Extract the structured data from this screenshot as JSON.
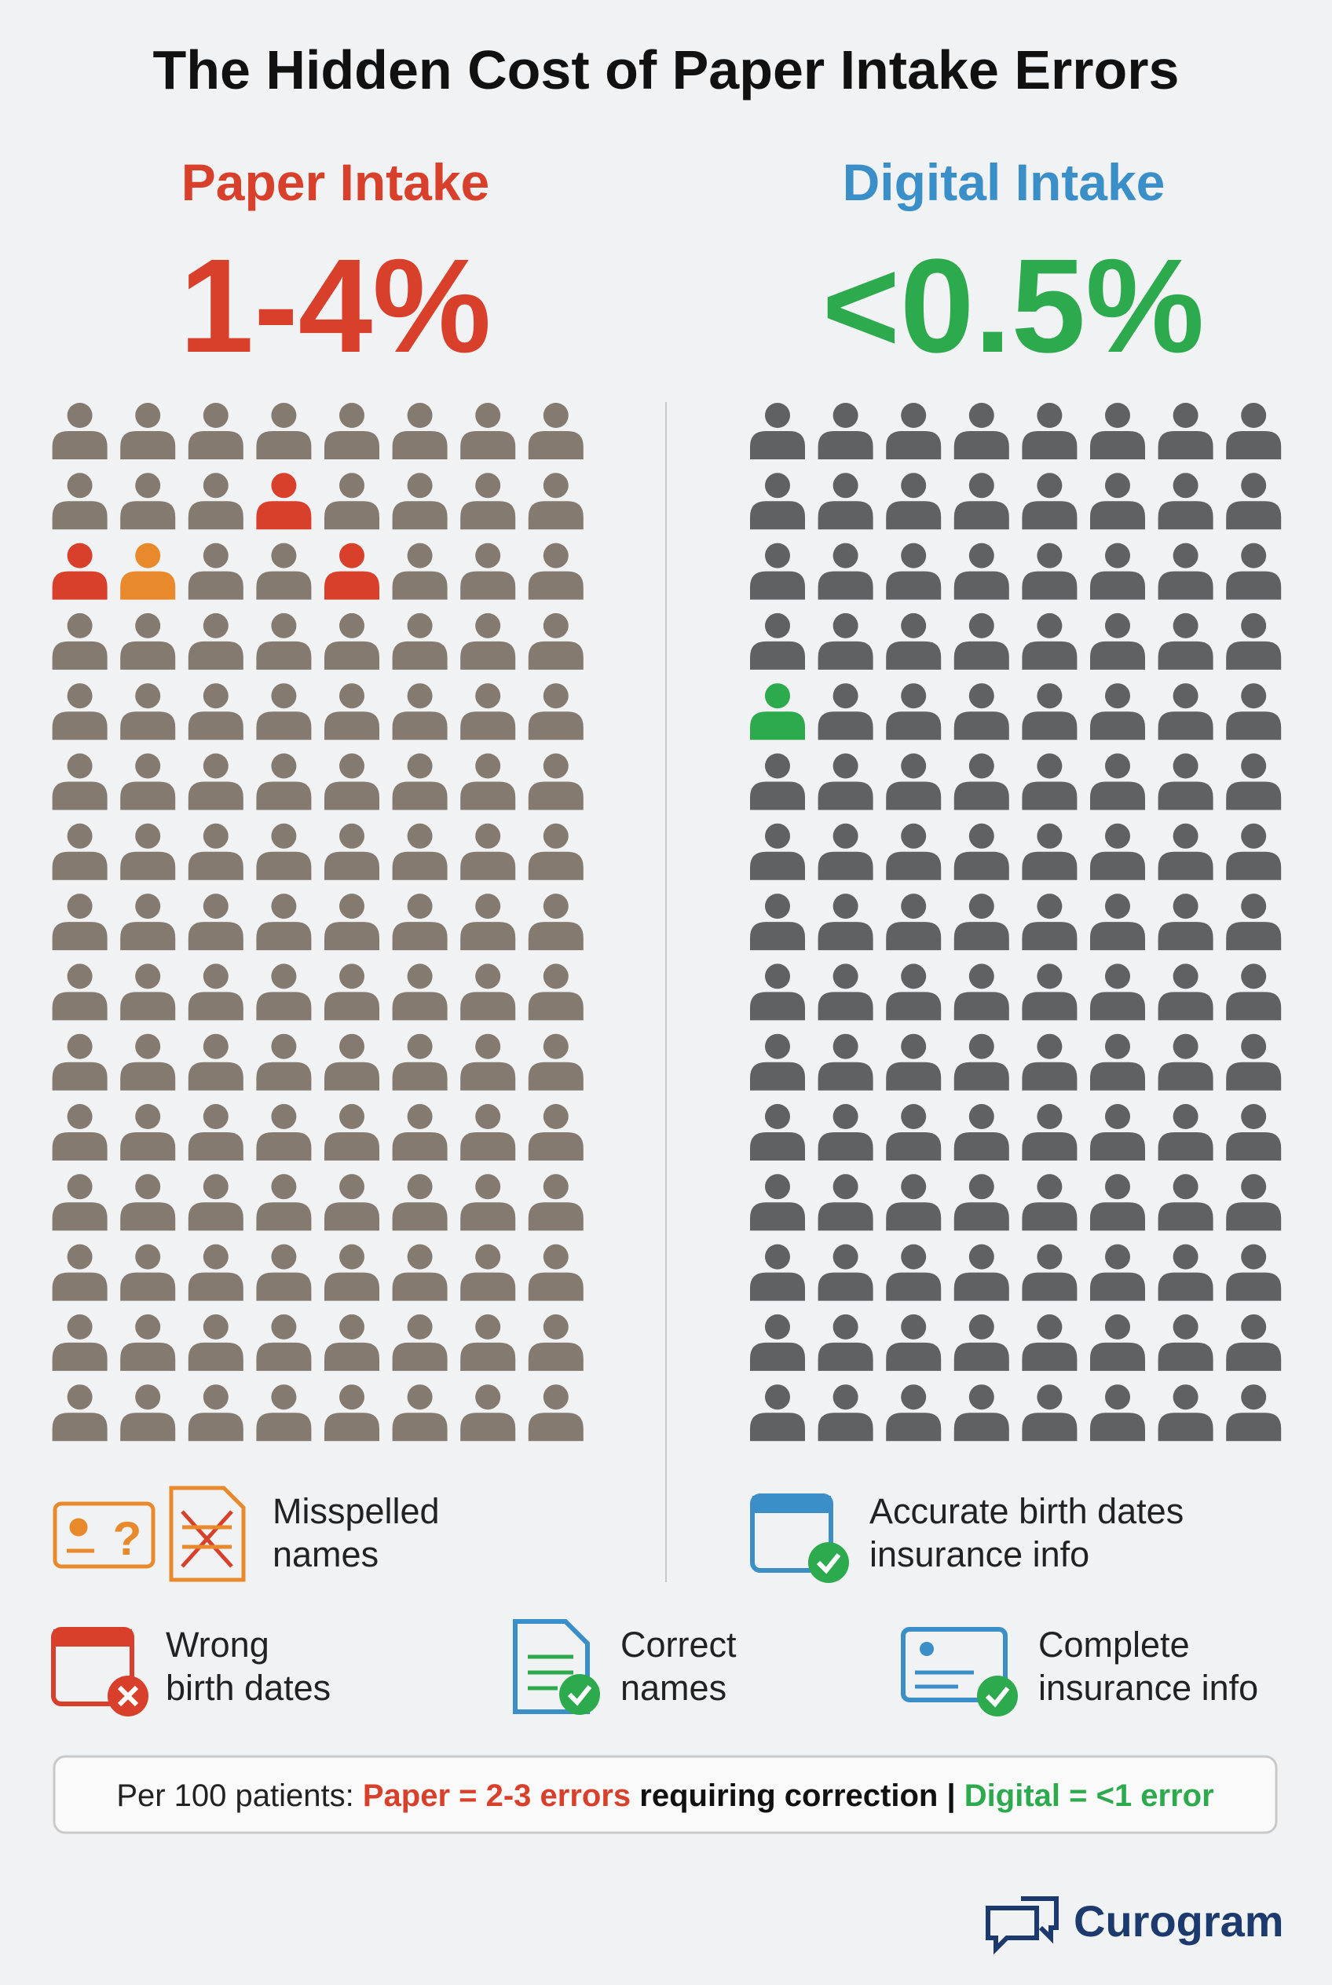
{
  "title": "The Hidden Cost of Paper Intake Errors",
  "paper": {
    "heading": "Paper Intake",
    "stat": "1-4%"
  },
  "digital": {
    "heading": "Digital Intake",
    "stat": "<0.5%"
  },
  "legend": [
    {
      "lines": [
        "Misspelled",
        "names"
      ]
    },
    {
      "lines": [
        "Accurate birth dates",
        "insurance info"
      ]
    },
    {
      "lines": [
        "Wrong",
        "birth dates"
      ]
    },
    {
      "lines": [
        "Correct",
        "names"
      ]
    },
    {
      "lines": [
        "Complete",
        "insurance info"
      ]
    }
  ],
  "footer": [
    "Per 100 patients: ",
    "Paper = 2-3 errors",
    " requiring correction | ",
    "Digital = <1 error"
  ],
  "brand": "Curogram"
}
